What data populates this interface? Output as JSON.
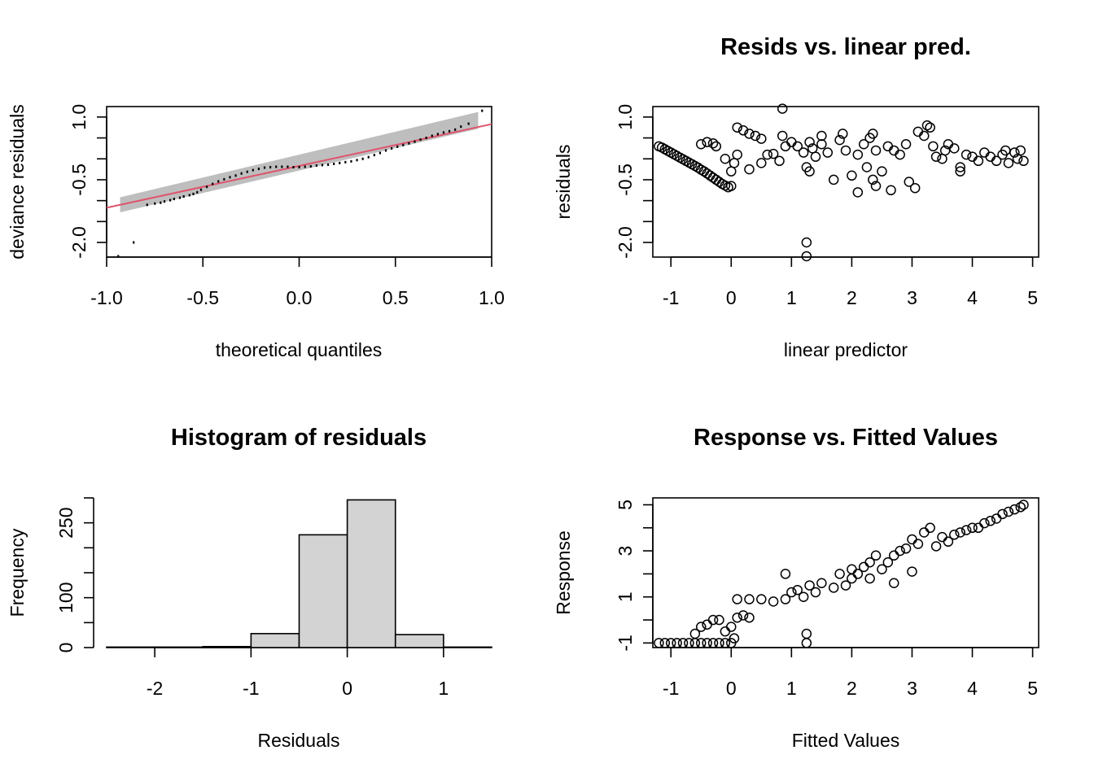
{
  "colors": {
    "reference_line": "#DF536B",
    "band": "#BEBEBE",
    "bars": "#D3D3D3",
    "ink": "#000000"
  },
  "chart_data": [
    {
      "type": "scatter",
      "title": "",
      "xlabel": "theoretical quantiles",
      "ylabel": "deviance residuals",
      "xlim": [
        -1.0,
        1.0
      ],
      "ylim": [
        -2.35,
        1.25
      ],
      "xticks": [
        "-1.0",
        "-0.5",
        "0.0",
        "0.5",
        "1.0"
      ],
      "yticks": [
        "1.0",
        "-0.5",
        "-2.0"
      ],
      "yticks_minor": [
        0.5,
        0.0,
        -1.0,
        -1.5
      ],
      "points": [
        [
          -0.94,
          -2.33
        ],
        [
          -0.86,
          -2.0
        ],
        [
          -0.79,
          -1.1
        ],
        [
          -0.75,
          -1.07
        ],
        [
          -0.72,
          -1.05
        ],
        [
          -0.7,
          -1.02
        ],
        [
          -0.67,
          -0.99
        ],
        [
          -0.65,
          -0.96
        ],
        [
          -0.62,
          -0.93
        ],
        [
          -0.6,
          -0.9
        ],
        [
          -0.57,
          -0.87
        ],
        [
          -0.55,
          -0.84
        ],
        [
          -0.53,
          -0.8
        ],
        [
          -0.51,
          -0.74
        ],
        [
          -0.48,
          -0.67
        ],
        [
          -0.45,
          -0.6
        ],
        [
          -0.42,
          -0.54
        ],
        [
          -0.39,
          -0.49
        ],
        [
          -0.36,
          -0.44
        ],
        [
          -0.33,
          -0.4
        ],
        [
          -0.3,
          -0.35
        ],
        [
          -0.27,
          -0.31
        ],
        [
          -0.24,
          -0.27
        ],
        [
          -0.21,
          -0.24
        ],
        [
          -0.18,
          -0.21
        ],
        [
          -0.15,
          -0.2
        ],
        [
          -0.12,
          -0.19
        ],
        [
          -0.09,
          -0.19
        ],
        [
          -0.06,
          -0.19
        ],
        [
          -0.03,
          -0.2
        ],
        [
          0.0,
          -0.2
        ],
        [
          0.03,
          -0.19
        ],
        [
          0.06,
          -0.18
        ],
        [
          0.09,
          -0.16
        ],
        [
          0.12,
          -0.15
        ],
        [
          0.15,
          -0.14
        ],
        [
          0.18,
          -0.12
        ],
        [
          0.21,
          -0.1
        ],
        [
          0.24,
          -0.08
        ],
        [
          0.27,
          -0.06
        ],
        [
          0.3,
          -0.03
        ],
        [
          0.33,
          0.0
        ],
        [
          0.36,
          0.04
        ],
        [
          0.39,
          0.09
        ],
        [
          0.42,
          0.14
        ],
        [
          0.45,
          0.2
        ],
        [
          0.48,
          0.25
        ],
        [
          0.51,
          0.29
        ],
        [
          0.54,
          0.33
        ],
        [
          0.57,
          0.37
        ],
        [
          0.6,
          0.41
        ],
        [
          0.63,
          0.46
        ],
        [
          0.66,
          0.5
        ],
        [
          0.69,
          0.55
        ],
        [
          0.72,
          0.59
        ],
        [
          0.75,
          0.63
        ],
        [
          0.78,
          0.66
        ],
        [
          0.81,
          0.7
        ],
        [
          0.84,
          0.77
        ],
        [
          0.88,
          0.84
        ],
        [
          0.95,
          1.15
        ]
      ],
      "reference_line": {
        "intercept": -0.17,
        "slope": 1.0
      },
      "band": {
        "x": [
          -0.93,
          0.93
        ],
        "lower_start": -1.28,
        "upper_start": -0.92,
        "lower_end": 0.72,
        "upper_end": 1.12
      }
    },
    {
      "type": "scatter",
      "title": "Resids vs. linear pred.",
      "xlabel": "linear predictor",
      "ylabel": "residuals",
      "xlim": [
        -1.3,
        5.1
      ],
      "ylim": [
        -2.35,
        1.25
      ],
      "xticks": [
        "-1",
        "0",
        "1",
        "2",
        "3",
        "4",
        "5"
      ],
      "yticks": [
        "1.0",
        "-0.5",
        "-2.0"
      ],
      "yticks_minor": [
        0.5,
        0.0,
        -1.0,
        -1.5
      ],
      "points": [
        [
          -1.2,
          0.3
        ],
        [
          -1.15,
          0.27
        ],
        [
          -1.1,
          0.23
        ],
        [
          -1.05,
          0.19
        ],
        [
          -1.0,
          0.15
        ],
        [
          -0.95,
          0.11
        ],
        [
          -0.9,
          0.07
        ],
        [
          -0.85,
          0.03
        ],
        [
          -0.8,
          -0.01
        ],
        [
          -0.75,
          -0.05
        ],
        [
          -0.7,
          -0.09
        ],
        [
          -0.65,
          -0.13
        ],
        [
          -0.6,
          -0.17
        ],
        [
          -0.55,
          -0.21
        ],
        [
          -0.5,
          -0.26
        ],
        [
          -0.45,
          -0.3
        ],
        [
          -0.4,
          -0.35
        ],
        [
          -0.35,
          -0.4
        ],
        [
          -0.3,
          -0.45
        ],
        [
          -0.25,
          -0.5
        ],
        [
          -0.2,
          -0.55
        ],
        [
          -0.15,
          -0.6
        ],
        [
          -0.1,
          -0.64
        ],
        [
          -0.05,
          -0.68
        ],
        [
          0.0,
          -0.65
        ],
        [
          -0.5,
          0.35
        ],
        [
          -0.4,
          0.4
        ],
        [
          -0.3,
          0.37
        ],
        [
          -0.25,
          0.3
        ],
        [
          -0.1,
          0.0
        ],
        [
          0.0,
          -0.3
        ],
        [
          0.05,
          -0.1
        ],
        [
          0.1,
          0.1
        ],
        [
          0.1,
          0.75
        ],
        [
          0.2,
          0.68
        ],
        [
          0.3,
          0.6
        ],
        [
          0.4,
          0.55
        ],
        [
          0.5,
          0.48
        ],
        [
          0.3,
          -0.25
        ],
        [
          0.5,
          -0.1
        ],
        [
          0.6,
          0.1
        ],
        [
          0.7,
          0.12
        ],
        [
          0.8,
          -0.05
        ],
        [
          0.85,
          0.55
        ],
        [
          0.9,
          0.3
        ],
        [
          0.85,
          1.2
        ],
        [
          1.0,
          0.4
        ],
        [
          1.1,
          0.3
        ],
        [
          1.2,
          0.15
        ],
        [
          1.25,
          -0.2
        ],
        [
          1.3,
          0.4
        ],
        [
          1.35,
          0.25
        ],
        [
          1.3,
          -0.3
        ],
        [
          1.4,
          0.05
        ],
        [
          1.5,
          0.35
        ],
        [
          1.5,
          0.55
        ],
        [
          1.6,
          0.15
        ],
        [
          1.7,
          -0.5
        ],
        [
          1.8,
          0.45
        ],
        [
          1.85,
          0.6
        ],
        [
          1.9,
          0.2
        ],
        [
          2.0,
          -0.4
        ],
        [
          2.1,
          -0.8
        ],
        [
          2.1,
          0.1
        ],
        [
          2.2,
          0.35
        ],
        [
          2.25,
          -0.2
        ],
        [
          2.3,
          0.5
        ],
        [
          2.35,
          0.6
        ],
        [
          2.4,
          0.2
        ],
        [
          2.35,
          -0.5
        ],
        [
          2.4,
          -0.65
        ],
        [
          2.5,
          -0.3
        ],
        [
          2.6,
          0.3
        ],
        [
          2.65,
          -0.75
        ],
        [
          2.7,
          0.2
        ],
        [
          2.8,
          0.1
        ],
        [
          2.9,
          0.35
        ],
        [
          2.95,
          -0.55
        ],
        [
          3.05,
          -0.7
        ],
        [
          3.1,
          0.65
        ],
        [
          3.2,
          0.55
        ],
        [
          3.25,
          0.8
        ],
        [
          3.3,
          0.75
        ],
        [
          3.35,
          0.3
        ],
        [
          3.4,
          0.05
        ],
        [
          3.5,
          0.0
        ],
        [
          3.55,
          0.2
        ],
        [
          3.6,
          0.35
        ],
        [
          3.7,
          0.25
        ],
        [
          3.8,
          -0.2
        ],
        [
          3.8,
          -0.3
        ],
        [
          3.9,
          0.1
        ],
        [
          4.0,
          0.05
        ],
        [
          4.1,
          -0.05
        ],
        [
          4.2,
          0.15
        ],
        [
          4.3,
          0.05
        ],
        [
          4.4,
          -0.05
        ],
        [
          4.5,
          0.1
        ],
        [
          4.55,
          0.2
        ],
        [
          4.6,
          -0.1
        ],
        [
          4.7,
          0.15
        ],
        [
          4.75,
          0.0
        ],
        [
          4.8,
          0.2
        ],
        [
          4.85,
          -0.05
        ],
        [
          1.25,
          -2.0
        ],
        [
          1.25,
          -2.33
        ]
      ]
    },
    {
      "type": "bar",
      "title": "Histogram of residuals",
      "xlabel": "Residuals",
      "ylabel": "Frequency",
      "xlim": [
        -2.5,
        1.5
      ],
      "ylim": [
        0,
        300
      ],
      "xticks": [
        "-2",
        "-1",
        "0",
        "1"
      ],
      "yticks": [
        "0",
        "100",
        "250"
      ],
      "yticks_minor": [
        50,
        150,
        200,
        300
      ],
      "bins": [
        [
          -2.5,
          -2.0,
          1
        ],
        [
          -2.0,
          -1.5,
          1
        ],
        [
          -1.5,
          -1.0,
          2
        ],
        [
          -1.0,
          -0.5,
          28
        ],
        [
          -0.5,
          0.0,
          226
        ],
        [
          0.0,
          0.5,
          296
        ],
        [
          0.5,
          1.0,
          26
        ],
        [
          1.0,
          1.5,
          1
        ]
      ]
    },
    {
      "type": "scatter",
      "title": "Response vs. Fitted Values",
      "xlabel": "Fitted Values",
      "ylabel": "Response",
      "xlim": [
        -1.3,
        5.1
      ],
      "ylim": [
        -1.2,
        5.3
      ],
      "xticks": [
        "-1",
        "0",
        "1",
        "2",
        "3",
        "4",
        "5"
      ],
      "yticks": [
        "5",
        "3",
        "1",
        "-1"
      ],
      "yticks_minor": [
        0,
        2,
        4
      ],
      "points": [
        [
          -1.2,
          -1
        ],
        [
          -1.1,
          -1
        ],
        [
          -1.0,
          -1
        ],
        [
          -0.9,
          -1
        ],
        [
          -0.8,
          -1
        ],
        [
          -0.7,
          -1
        ],
        [
          -0.6,
          -1
        ],
        [
          -0.5,
          -1
        ],
        [
          -0.4,
          -1
        ],
        [
          -0.3,
          -1
        ],
        [
          -0.2,
          -1
        ],
        [
          -0.1,
          -1
        ],
        [
          0.0,
          -1
        ],
        [
          -0.6,
          -0.6
        ],
        [
          -0.5,
          -0.3
        ],
        [
          -0.4,
          -0.2
        ],
        [
          -0.3,
          0.0
        ],
        [
          -0.2,
          0.0
        ],
        [
          -0.1,
          -0.5
        ],
        [
          0.0,
          -0.3
        ],
        [
          0.05,
          -0.8
        ],
        [
          0.1,
          0.1
        ],
        [
          0.2,
          0.2
        ],
        [
          0.3,
          0.1
        ],
        [
          0.1,
          0.9
        ],
        [
          0.3,
          0.9
        ],
        [
          0.5,
          0.9
        ],
        [
          0.7,
          0.8
        ],
        [
          0.9,
          0.9
        ],
        [
          1.0,
          1.2
        ],
        [
          1.1,
          1.3
        ],
        [
          1.2,
          1.0
        ],
        [
          1.3,
          1.5
        ],
        [
          1.4,
          1.2
        ],
        [
          1.5,
          1.6
        ],
        [
          1.7,
          1.4
        ],
        [
          1.8,
          2.0
        ],
        [
          1.9,
          1.5
        ],
        [
          2.0,
          1.8
        ],
        [
          2.0,
          2.2
        ],
        [
          2.1,
          2.0
        ],
        [
          2.2,
          2.3
        ],
        [
          2.3,
          1.8
        ],
        [
          2.3,
          2.5
        ],
        [
          2.4,
          2.8
        ],
        [
          2.5,
          2.2
        ],
        [
          2.6,
          2.5
        ],
        [
          2.7,
          2.8
        ],
        [
          2.8,
          3.0
        ],
        [
          2.9,
          3.1
        ],
        [
          3.0,
          2.1
        ],
        [
          3.0,
          3.5
        ],
        [
          3.1,
          3.3
        ],
        [
          3.2,
          3.8
        ],
        [
          3.3,
          4.0
        ],
        [
          3.4,
          3.2
        ],
        [
          3.5,
          3.6
        ],
        [
          3.6,
          3.4
        ],
        [
          3.7,
          3.7
        ],
        [
          3.8,
          3.8
        ],
        [
          3.9,
          3.9
        ],
        [
          4.0,
          4.0
        ],
        [
          4.1,
          4.0
        ],
        [
          4.2,
          4.2
        ],
        [
          4.3,
          4.3
        ],
        [
          4.4,
          4.4
        ],
        [
          4.5,
          4.6
        ],
        [
          4.6,
          4.7
        ],
        [
          4.7,
          4.8
        ],
        [
          4.8,
          4.9
        ],
        [
          4.85,
          5.0
        ],
        [
          0.9,
          2.0
        ],
        [
          1.25,
          -1
        ],
        [
          1.25,
          -0.6
        ],
        [
          2.7,
          1.6
        ]
      ]
    }
  ]
}
